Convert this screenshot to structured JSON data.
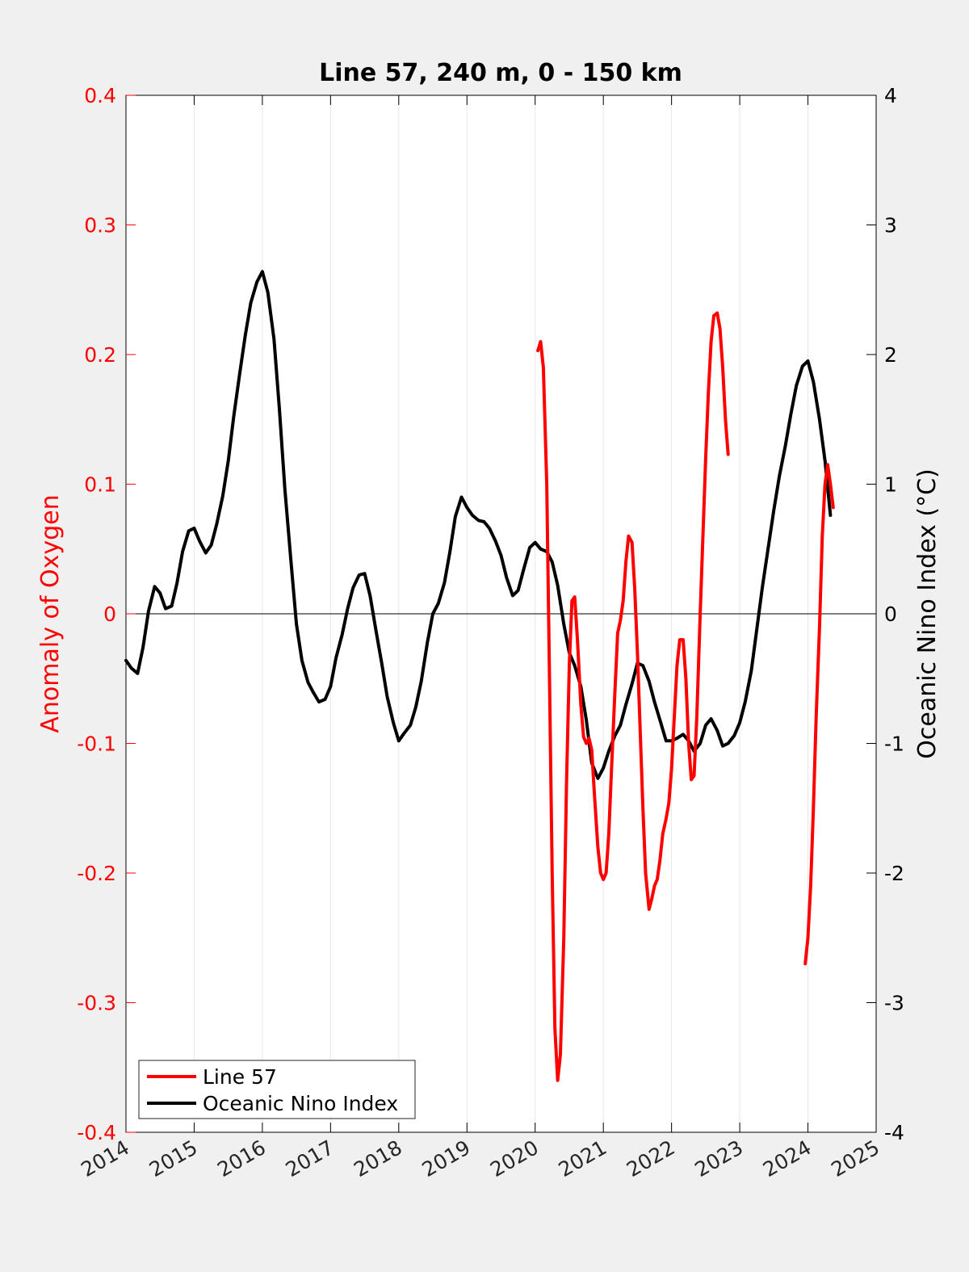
{
  "chart_data": {
    "type": "line",
    "title": "Line 57, 240 m, 0 - 150 km",
    "ylabel_left": "Anomaly of Oxygen",
    "ylabel_right": "Oceanic Nino Index (°C)",
    "xlim": [
      2014,
      2025
    ],
    "ylim_left": [
      -0.4,
      0.4
    ],
    "ylim_right": [
      -4,
      4
    ],
    "xticks": [
      "2014",
      "2015",
      "2016",
      "2017",
      "2018",
      "2019",
      "2020",
      "2021",
      "2022",
      "2023",
      "2024",
      "2025"
    ],
    "yticks_left": [
      "0.4",
      "0.3",
      "0.2",
      "0.1",
      "0",
      "-0.1",
      "-0.2",
      "-0.3",
      "-0.4"
    ],
    "yticks_right": [
      "4",
      "3",
      "2",
      "1",
      "0",
      "-1",
      "-2",
      "-3",
      "-4"
    ],
    "grid_x": true,
    "legend": {
      "placement": "bottom-left",
      "entries": [
        "Line 57",
        "Oceanic Nino Index"
      ]
    },
    "series": [
      {
        "name": "Line 57",
        "axis": "left",
        "color": "#ff0000",
        "segments": [
          [
            [
              2020.04,
              0.203
            ],
            [
              2020.08,
              0.21
            ],
            [
              2020.12,
              0.19
            ],
            [
              2020.17,
              0.1
            ],
            [
              2020.21,
              -0.05
            ],
            [
              2020.25,
              -0.2
            ],
            [
              2020.29,
              -0.32
            ],
            [
              2020.33,
              -0.36
            ],
            [
              2020.37,
              -0.34
            ],
            [
              2020.42,
              -0.25
            ],
            [
              2020.46,
              -0.13
            ],
            [
              2020.5,
              -0.04
            ],
            [
              2020.54,
              0.01
            ],
            [
              2020.58,
              0.013
            ],
            [
              2020.62,
              -0.02
            ],
            [
              2020.67,
              -0.07
            ],
            [
              2020.71,
              -0.095
            ],
            [
              2020.75,
              -0.1
            ],
            [
              2020.79,
              -0.096
            ],
            [
              2020.83,
              -0.105
            ],
            [
              2020.87,
              -0.14
            ],
            [
              2020.92,
              -0.18
            ],
            [
              2020.96,
              -0.2
            ],
            [
              2021.0,
              -0.205
            ],
            [
              2021.04,
              -0.2
            ],
            [
              2021.08,
              -0.17
            ],
            [
              2021.12,
              -0.12
            ],
            [
              2021.17,
              -0.06
            ],
            [
              2021.21,
              -0.015
            ],
            [
              2021.25,
              -0.005
            ],
            [
              2021.29,
              0.01
            ],
            [
              2021.33,
              0.04
            ],
            [
              2021.37,
              0.06
            ],
            [
              2021.42,
              0.055
            ],
            [
              2021.46,
              0.02
            ],
            [
              2021.5,
              -0.03
            ],
            [
              2021.54,
              -0.09
            ],
            [
              2021.58,
              -0.15
            ],
            [
              2021.62,
              -0.2
            ],
            [
              2021.67,
              -0.228
            ],
            [
              2021.71,
              -0.22
            ],
            [
              2021.75,
              -0.21
            ],
            [
              2021.79,
              -0.205
            ],
            [
              2021.83,
              -0.19
            ],
            [
              2021.87,
              -0.17
            ],
            [
              2021.92,
              -0.158
            ],
            [
              2021.96,
              -0.146
            ],
            [
              2022.0,
              -0.12
            ],
            [
              2022.04,
              -0.08
            ],
            [
              2022.08,
              -0.04
            ],
            [
              2022.12,
              -0.02
            ],
            [
              2022.17,
              -0.02
            ],
            [
              2022.21,
              -0.05
            ],
            [
              2022.25,
              -0.1
            ],
            [
              2022.29,
              -0.128
            ],
            [
              2022.33,
              -0.125
            ],
            [
              2022.37,
              -0.08
            ],
            [
              2022.42,
              0.0
            ],
            [
              2022.46,
              0.06
            ],
            [
              2022.5,
              0.12
            ],
            [
              2022.54,
              0.17
            ],
            [
              2022.58,
              0.21
            ],
            [
              2022.62,
              0.23
            ],
            [
              2022.67,
              0.232
            ],
            [
              2022.71,
              0.22
            ],
            [
              2022.75,
              0.19
            ],
            [
              2022.79,
              0.15
            ],
            [
              2022.83,
              0.123
            ]
          ],
          [
            [
              2023.96,
              -0.27
            ],
            [
              2024.0,
              -0.25
            ],
            [
              2024.04,
              -0.21
            ],
            [
              2024.08,
              -0.15
            ],
            [
              2024.12,
              -0.08
            ],
            [
              2024.17,
              -0.01
            ],
            [
              2024.21,
              0.06
            ],
            [
              2024.25,
              0.1
            ],
            [
              2024.29,
              0.115
            ],
            [
              2024.33,
              0.1
            ],
            [
              2024.37,
              0.082
            ]
          ]
        ]
      },
      {
        "name": "Oceanic Nino Index",
        "axis": "right",
        "color": "#000000",
        "segments": [
          [
            [
              2014.0,
              -0.36
            ],
            [
              2014.08,
              -0.42
            ],
            [
              2014.17,
              -0.46
            ],
            [
              2014.25,
              -0.26
            ],
            [
              2014.33,
              0.02
            ],
            [
              2014.42,
              0.21
            ],
            [
              2014.5,
              0.16
            ],
            [
              2014.58,
              0.04
            ],
            [
              2014.67,
              0.06
            ],
            [
              2014.75,
              0.24
            ],
            [
              2014.83,
              0.48
            ],
            [
              2014.92,
              0.64
            ],
            [
              2015.0,
              0.66
            ],
            [
              2015.08,
              0.56
            ],
            [
              2015.17,
              0.47
            ],
            [
              2015.25,
              0.53
            ],
            [
              2015.33,
              0.69
            ],
            [
              2015.42,
              0.91
            ],
            [
              2015.5,
              1.18
            ],
            [
              2015.58,
              1.52
            ],
            [
              2015.67,
              1.86
            ],
            [
              2015.75,
              2.15
            ],
            [
              2015.83,
              2.4
            ],
            [
              2015.92,
              2.56
            ],
            [
              2016.0,
              2.64
            ],
            [
              2016.08,
              2.48
            ],
            [
              2016.17,
              2.12
            ],
            [
              2016.25,
              1.58
            ],
            [
              2016.33,
              0.96
            ],
            [
              2016.42,
              0.4
            ],
            [
              2016.5,
              -0.08
            ],
            [
              2016.58,
              -0.36
            ],
            [
              2016.67,
              -0.53
            ],
            [
              2016.75,
              -0.61
            ],
            [
              2016.83,
              -0.68
            ],
            [
              2016.92,
              -0.66
            ],
            [
              2017.0,
              -0.56
            ],
            [
              2017.08,
              -0.34
            ],
            [
              2017.17,
              -0.16
            ],
            [
              2017.25,
              0.04
            ],
            [
              2017.33,
              0.2
            ],
            [
              2017.42,
              0.3
            ],
            [
              2017.5,
              0.31
            ],
            [
              2017.58,
              0.14
            ],
            [
              2017.67,
              -0.14
            ],
            [
              2017.75,
              -0.38
            ],
            [
              2017.83,
              -0.64
            ],
            [
              2017.92,
              -0.84
            ],
            [
              2018.0,
              -0.98
            ],
            [
              2018.08,
              -0.92
            ],
            [
              2018.17,
              -0.86
            ],
            [
              2018.25,
              -0.72
            ],
            [
              2018.33,
              -0.52
            ],
            [
              2018.42,
              -0.22
            ],
            [
              2018.5,
              0.0
            ],
            [
              2018.58,
              0.08
            ],
            [
              2018.67,
              0.24
            ],
            [
              2018.75,
              0.48
            ],
            [
              2018.83,
              0.75
            ],
            [
              2018.92,
              0.9
            ],
            [
              2019.0,
              0.82
            ],
            [
              2019.08,
              0.76
            ],
            [
              2019.17,
              0.72
            ],
            [
              2019.25,
              0.71
            ],
            [
              2019.33,
              0.66
            ],
            [
              2019.42,
              0.56
            ],
            [
              2019.5,
              0.45
            ],
            [
              2019.58,
              0.28
            ],
            [
              2019.67,
              0.14
            ],
            [
              2019.75,
              0.18
            ],
            [
              2019.83,
              0.34
            ],
            [
              2019.92,
              0.51
            ],
            [
              2020.0,
              0.55
            ],
            [
              2020.08,
              0.5
            ],
            [
              2020.17,
              0.48
            ],
            [
              2020.25,
              0.4
            ],
            [
              2020.33,
              0.22
            ],
            [
              2020.42,
              -0.08
            ],
            [
              2020.5,
              -0.3
            ],
            [
              2020.58,
              -0.4
            ],
            [
              2020.67,
              -0.56
            ],
            [
              2020.75,
              -0.82
            ],
            [
              2020.83,
              -1.15
            ],
            [
              2020.92,
              -1.27
            ],
            [
              2021.0,
              -1.19
            ],
            [
              2021.08,
              -1.06
            ],
            [
              2021.17,
              -0.94
            ],
            [
              2021.25,
              -0.86
            ],
            [
              2021.33,
              -0.7
            ],
            [
              2021.42,
              -0.54
            ],
            [
              2021.5,
              -0.38
            ],
            [
              2021.58,
              -0.4
            ],
            [
              2021.67,
              -0.52
            ],
            [
              2021.75,
              -0.68
            ],
            [
              2021.83,
              -0.82
            ],
            [
              2021.92,
              -0.98
            ],
            [
              2022.0,
              -0.98
            ],
            [
              2022.08,
              -0.96
            ],
            [
              2022.17,
              -0.93
            ],
            [
              2022.25,
              -0.98
            ],
            [
              2022.33,
              -1.06
            ],
            [
              2022.42,
              -1.0
            ],
            [
              2022.5,
              -0.86
            ],
            [
              2022.58,
              -0.81
            ],
            [
              2022.67,
              -0.9
            ],
            [
              2022.75,
              -1.02
            ],
            [
              2022.83,
              -1.0
            ],
            [
              2022.92,
              -0.94
            ],
            [
              2023.0,
              -0.84
            ],
            [
              2023.08,
              -0.68
            ],
            [
              2023.17,
              -0.44
            ],
            [
              2023.25,
              -0.12
            ],
            [
              2023.33,
              0.2
            ],
            [
              2023.42,
              0.52
            ],
            [
              2023.5,
              0.8
            ],
            [
              2023.58,
              1.06
            ],
            [
              2023.67,
              1.3
            ],
            [
              2023.75,
              1.54
            ],
            [
              2023.83,
              1.76
            ],
            [
              2023.92,
              1.91
            ],
            [
              2024.0,
              1.95
            ],
            [
              2024.08,
              1.79
            ],
            [
              2024.17,
              1.5
            ],
            [
              2024.25,
              1.18
            ],
            [
              2024.33,
              0.76
            ]
          ]
        ]
      }
    ]
  }
}
